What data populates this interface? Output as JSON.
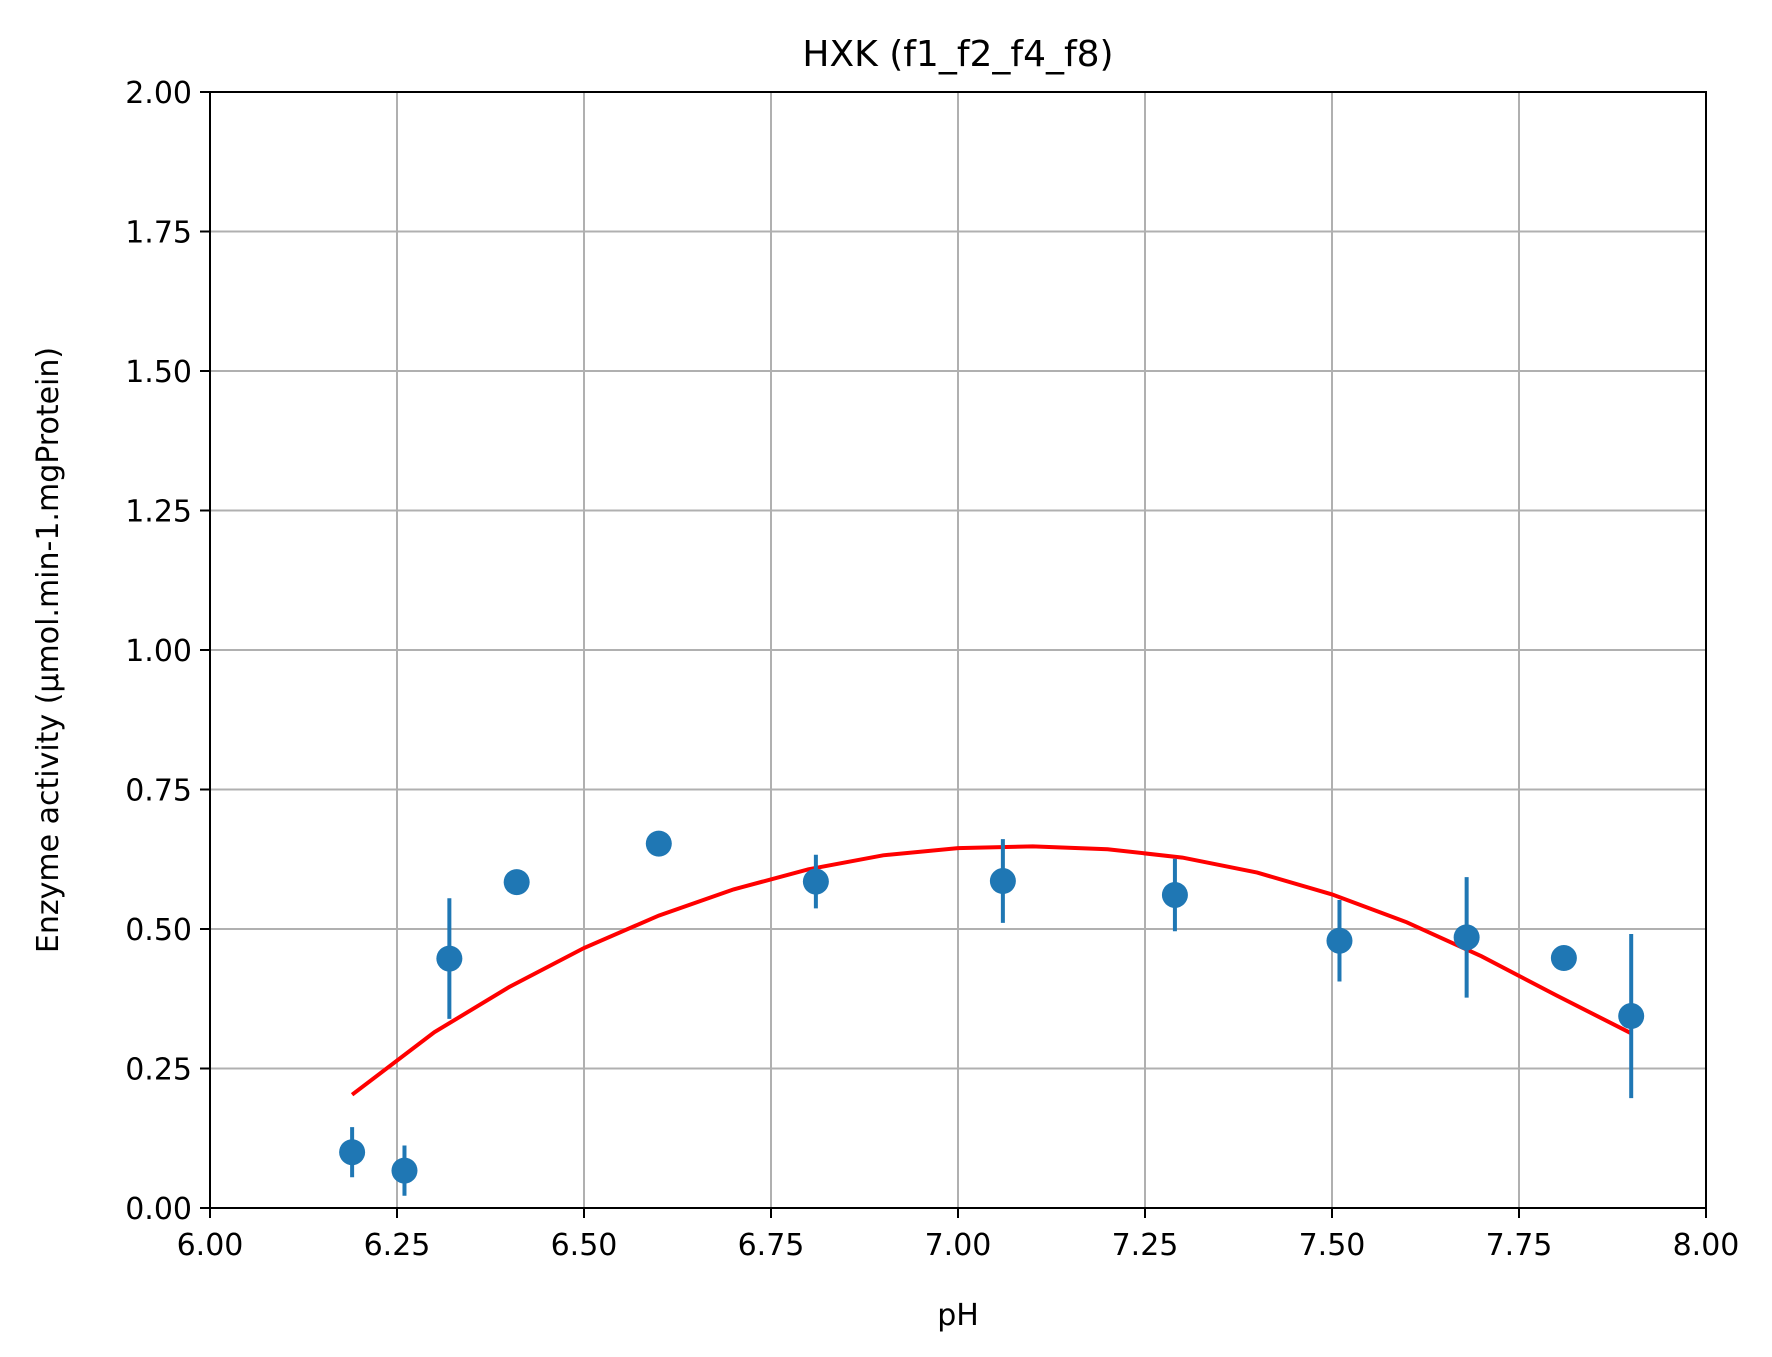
{
  "chart_data": {
    "type": "scatter",
    "title": "HXK (f1_f2_f4_f8)",
    "xlabel": "pH",
    "ylabel": "Enzyme activity (µmol.min-1.mgProtein)",
    "xlim": [
      6.0,
      8.0
    ],
    "ylim": [
      0.0,
      2.0
    ],
    "xticks": [
      "6.00",
      "6.25",
      "6.50",
      "6.75",
      "7.00",
      "7.25",
      "7.50",
      "7.75",
      "8.00"
    ],
    "yticks": [
      "0.00",
      "0.25",
      "0.50",
      "0.75",
      "1.00",
      "1.25",
      "1.50",
      "1.75",
      "2.00"
    ],
    "grid": true,
    "series": [
      {
        "type": "errorbar",
        "color": "#1f77b4",
        "points": [
          {
            "x": 6.19,
            "y": 0.1,
            "err": 0.045
          },
          {
            "x": 6.26,
            "y": 0.067,
            "err": 0.045
          },
          {
            "x": 6.32,
            "y": 0.447,
            "err": 0.108
          },
          {
            "x": 6.41,
            "y": 0.584,
            "err": 0.0
          },
          {
            "x": 6.6,
            "y": 0.653,
            "err": 0.02
          },
          {
            "x": 6.81,
            "y": 0.585,
            "err": 0.048
          },
          {
            "x": 7.06,
            "y": 0.586,
            "err": 0.075
          },
          {
            "x": 7.29,
            "y": 0.561,
            "err": 0.065
          },
          {
            "x": 7.51,
            "y": 0.479,
            "err": 0.073
          },
          {
            "x": 7.68,
            "y": 0.485,
            "err": 0.108
          },
          {
            "x": 7.81,
            "y": 0.448,
            "err": 0.0
          },
          {
            "x": 7.9,
            "y": 0.344,
            "err": 0.147
          }
        ]
      },
      {
        "type": "fit-line",
        "color": "#ff0000",
        "x": [
          6.19,
          6.3,
          6.4,
          6.5,
          6.6,
          6.7,
          6.8,
          6.9,
          7.0,
          7.1,
          7.2,
          7.3,
          7.4,
          7.5,
          7.6,
          7.7,
          7.8,
          7.9
        ],
        "y": [
          0.203,
          0.315,
          0.396,
          0.466,
          0.524,
          0.571,
          0.607,
          0.632,
          0.645,
          0.648,
          0.643,
          0.628,
          0.601,
          0.562,
          0.512,
          0.451,
          0.381,
          0.313
        ]
      }
    ]
  }
}
